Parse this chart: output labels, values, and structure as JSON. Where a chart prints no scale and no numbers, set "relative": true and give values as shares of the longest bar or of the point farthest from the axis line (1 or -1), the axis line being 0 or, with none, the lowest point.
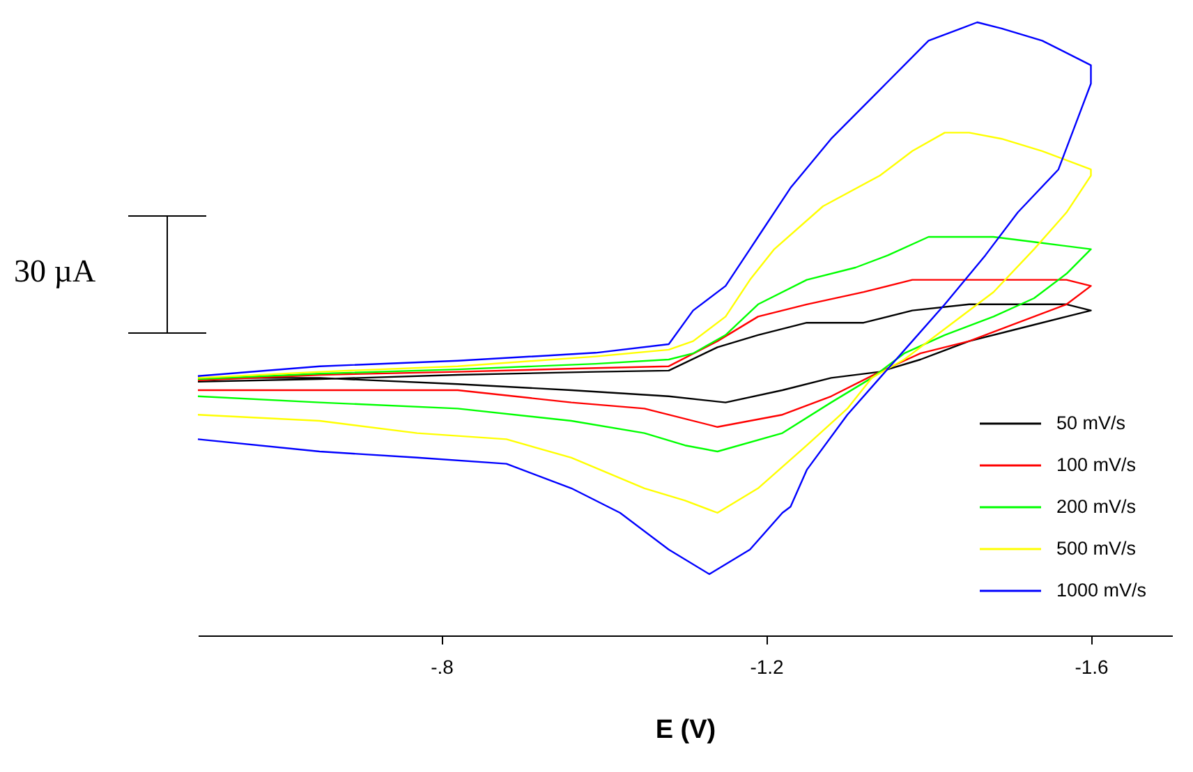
{
  "chart_data": {
    "type": "line",
    "relative": true,
    "xlabel": "E (V)",
    "xlim": [
      -0.5,
      -1.7
    ],
    "xticks": [
      {
        "value": -0.8,
        "label": "-.8"
      },
      -1.2,
      -1.6
    ],
    "grid": false,
    "legend": "right",
    "line_style": "solid",
    "annotations": [
      "30 µA"
    ],
    "series": [
      {
        "name": "50 mV/s",
        "color": "#000000",
        "x": [
          -0.5,
          -0.65,
          -0.82,
          -0.99,
          -1.08,
          -1.14,
          -1.19,
          -1.25,
          -1.32,
          -1.38,
          -1.45,
          -1.51,
          -1.57,
          -1.6,
          -1.57,
          -1.51,
          -1.45,
          -1.39,
          -1.34,
          -1.28,
          -1.22,
          -1.15,
          -1.08,
          -0.96,
          -0.82,
          -0.65,
          -0.5
        ],
        "values": [
          0.414,
          0.418,
          0.425,
          0.43,
          0.432,
          0.47,
          0.49,
          0.51,
          0.51,
          0.53,
          0.54,
          0.54,
          0.54,
          0.53,
          0.52,
          0.5,
          0.48,
          0.45,
          0.43,
          0.42,
          0.4,
          0.38,
          0.39,
          0.4,
          0.41,
          0.42,
          0.42
        ]
      },
      {
        "name": "100 mV/s",
        "color": "#ff0000",
        "x": [
          -0.5,
          -0.65,
          -0.82,
          -0.99,
          -1.08,
          -1.14,
          -1.19,
          -1.25,
          -1.32,
          -1.38,
          -1.45,
          -1.51,
          -1.57,
          -1.6,
          -1.57,
          -1.51,
          -1.45,
          -1.39,
          -1.34,
          -1.28,
          -1.22,
          -1.14,
          -1.05,
          -0.96,
          -0.82,
          -0.65,
          -0.5
        ],
        "values": [
          0.416,
          0.425,
          0.43,
          0.436,
          0.439,
          0.48,
          0.52,
          0.54,
          0.56,
          0.58,
          0.58,
          0.58,
          0.58,
          0.57,
          0.54,
          0.51,
          0.48,
          0.46,
          0.43,
          0.39,
          0.36,
          0.34,
          0.37,
          0.38,
          0.4,
          0.4,
          0.4
        ]
      },
      {
        "name": "200 mV/s",
        "color": "#00ff00",
        "x": [
          -0.5,
          -0.65,
          -0.82,
          -0.99,
          -1.08,
          -1.11,
          -1.15,
          -1.19,
          -1.25,
          -1.31,
          -1.35,
          -1.4,
          -1.48,
          -1.54,
          -1.6,
          -1.57,
          -1.53,
          -1.48,
          -1.42,
          -1.37,
          -1.33,
          -1.28,
          -1.22,
          -1.14,
          -1.1,
          -1.05,
          -0.96,
          -0.82,
          -0.65,
          -0.5
        ],
        "values": [
          0.418,
          0.427,
          0.434,
          0.443,
          0.45,
          0.46,
          0.49,
          0.54,
          0.58,
          0.6,
          0.62,
          0.65,
          0.65,
          0.64,
          0.63,
          0.59,
          0.55,
          0.52,
          0.49,
          0.46,
          0.42,
          0.38,
          0.33,
          0.3,
          0.31,
          0.33,
          0.35,
          0.37,
          0.38,
          0.39
        ]
      },
      {
        "name": "500 mV/s",
        "color": "#ffff00",
        "x": [
          -0.5,
          -0.65,
          -0.82,
          -0.99,
          -1.08,
          -1.11,
          -1.15,
          -1.18,
          -1.21,
          -1.27,
          -1.34,
          -1.38,
          -1.42,
          -1.45,
          -1.49,
          -1.54,
          -1.6,
          -1.6,
          -1.57,
          -1.53,
          -1.48,
          -1.42,
          -1.37,
          -1.33,
          -1.3,
          -1.25,
          -1.19,
          -1.14,
          -1.1,
          -1.05,
          -0.96,
          -0.88,
          -0.77,
          -0.65,
          -0.5
        ],
        "values": [
          0.42,
          0.43,
          0.439,
          0.455,
          0.466,
          0.48,
          0.52,
          0.58,
          0.63,
          0.7,
          0.75,
          0.79,
          0.82,
          0.82,
          0.81,
          0.79,
          0.76,
          0.75,
          0.69,
          0.63,
          0.56,
          0.5,
          0.45,
          0.42,
          0.37,
          0.31,
          0.24,
          0.2,
          0.22,
          0.24,
          0.29,
          0.32,
          0.33,
          0.35,
          0.36
        ]
      },
      {
        "name": "1000 mV/s",
        "color": "#0000ff",
        "x": [
          -0.5,
          -0.65,
          -0.82,
          -0.99,
          -1.08,
          -1.11,
          -1.15,
          -1.18,
          -1.19,
          -1.23,
          -1.28,
          -1.34,
          -1.37,
          -1.4,
          -1.44,
          -1.46,
          -1.49,
          -1.54,
          -1.6,
          -1.6,
          -1.58,
          -1.56,
          -1.51,
          -1.47,
          -1.42,
          -1.38,
          -1.34,
          -1.3,
          -1.25,
          -1.23,
          -1.22,
          -1.18,
          -1.13,
          -1.08,
          -1.02,
          -0.96,
          -0.88,
          -0.77,
          -0.65,
          -0.5
        ],
        "values": [
          0.423,
          0.439,
          0.448,
          0.461,
          0.475,
          0.53,
          0.57,
          0.63,
          0.65,
          0.73,
          0.81,
          0.89,
          0.93,
          0.97,
          0.99,
          1.0,
          0.99,
          0.97,
          0.93,
          0.9,
          0.83,
          0.76,
          0.69,
          0.62,
          0.54,
          0.48,
          0.42,
          0.36,
          0.27,
          0.21,
          0.2,
          0.14,
          0.1,
          0.14,
          0.2,
          0.24,
          0.28,
          0.29,
          0.3,
          0.32
        ]
      }
    ]
  }
}
